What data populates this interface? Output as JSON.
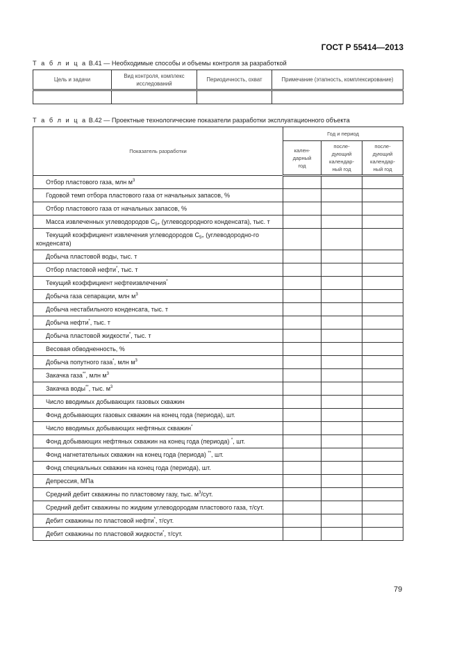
{
  "header": {
    "standard": "ГОСТ Р 55414—2013"
  },
  "table_b41": {
    "caption_prefix": "Т а б л и ц а",
    "caption_text": "В.41 — Необходимые способы и объемы контроля за разработкой",
    "columns": [
      "Цель и задачи",
      "Вид контроля, комплекс исследований",
      "Периодичность, охват",
      "Примечание (этапность, комплексирование)"
    ]
  },
  "table_b42": {
    "caption_prefix": "Т а б л и ц а",
    "caption_text": "В.42 — Проектные технологические показатели разработки эксплуатационного объекта",
    "indicator_header": "Показатель разработки",
    "period_header": "Год и период",
    "period_columns": [
      "кален-\nдарный\nгод",
      "после-\nдующий\nкалендар-\nный год",
      "после-\nдующий\nкалендар-\nный год"
    ],
    "rows": [
      [
        {
          "t": "Отбор пластового газа, млн м"
        },
        {
          "sup": "3"
        }
      ],
      [
        {
          "t": "Годовой темп отбора пластового газа от начальных запасов, %"
        }
      ],
      [
        {
          "t": "Отбор пластового газа от начальных запасов, %"
        }
      ],
      [
        {
          "t": "Масса извлеченных углеводородов С"
        },
        {
          "sub": "5+"
        },
        {
          "t": " (углеводородного конденсата), тыс. т"
        }
      ],
      [
        {
          "t": "Текущий коэффициент извлечения углеводородов С"
        },
        {
          "sub": "5+"
        },
        {
          "t": " (углеводородно-го конденсата)"
        }
      ],
      [
        {
          "t": "Добыча пластовой воды, тыс. т"
        }
      ],
      [
        {
          "t": "Отбор пластовой нефти"
        },
        {
          "sup": "*"
        },
        {
          "t": ", тыс. т"
        }
      ],
      [
        {
          "t": "Текущий коэффициент нефтеизвлечения"
        },
        {
          "sup": "*"
        }
      ],
      [
        {
          "t": "Добыча газа сепарации, млн м"
        },
        {
          "sup": "3"
        }
      ],
      [
        {
          "t": "Добыча нестабильного конденсата, тыс. т"
        }
      ],
      [
        {
          "t": "Добыча нефти"
        },
        {
          "sup": "*"
        },
        {
          "t": ", тыс. т"
        }
      ],
      [
        {
          "t": "Добыча пластовой жидкости"
        },
        {
          "sup": "*"
        },
        {
          "t": ", тыс. т"
        }
      ],
      [
        {
          "t": "Весовая обводненность, %"
        }
      ],
      [
        {
          "t": "Добыча попутного газа"
        },
        {
          "sup": "*"
        },
        {
          "t": ", млн м"
        },
        {
          "sup": "3"
        }
      ],
      [
        {
          "t": "Закачка газа"
        },
        {
          "sup": "**"
        },
        {
          "t": ", млн м"
        },
        {
          "sup": "3"
        }
      ],
      [
        {
          "t": "Закачка воды"
        },
        {
          "sup": "**"
        },
        {
          "t": ", тыс. м"
        },
        {
          "sup": "3"
        }
      ],
      [
        {
          "t": "Число вводимых добывающих газовых скважин"
        }
      ],
      [
        {
          "t": "Фонд добывающих газовых скважин на конец года (периода), шт."
        }
      ],
      [
        {
          "t": "Число вводимых добывающих нефтяных скважин"
        },
        {
          "sup": "*"
        }
      ],
      [
        {
          "t": "Фонд добывающих нефтяных скважин на конец года (периода) "
        },
        {
          "sup": "*"
        },
        {
          "t": ", шт."
        }
      ],
      [
        {
          "t": "Фонд нагнетательных скважин на конец года (периода) "
        },
        {
          "sup": "**"
        },
        {
          "t": ", шт."
        }
      ],
      [
        {
          "t": "Фонд специальных скважин на конец года (периода), шт."
        }
      ],
      [
        {
          "t": "Депрессия, МПа"
        }
      ],
      [
        {
          "t": "Средний дебит скважины по пластовому газу, тыс. м"
        },
        {
          "sup": "3"
        },
        {
          "t": "/сут."
        }
      ],
      [
        {
          "t": "Средний дебит скважины по жидким углеводородам пластового газа, т/сут."
        }
      ],
      [
        {
          "t": "Дебит скважины по пластовой нефти"
        },
        {
          "sup": "*"
        },
        {
          "t": ", т/сут."
        }
      ],
      [
        {
          "t": "Дебит скважины по пластовой жидкости"
        },
        {
          "sup": "*"
        },
        {
          "t": ", т/сут."
        }
      ]
    ]
  },
  "footer": {
    "page_number": "79"
  }
}
